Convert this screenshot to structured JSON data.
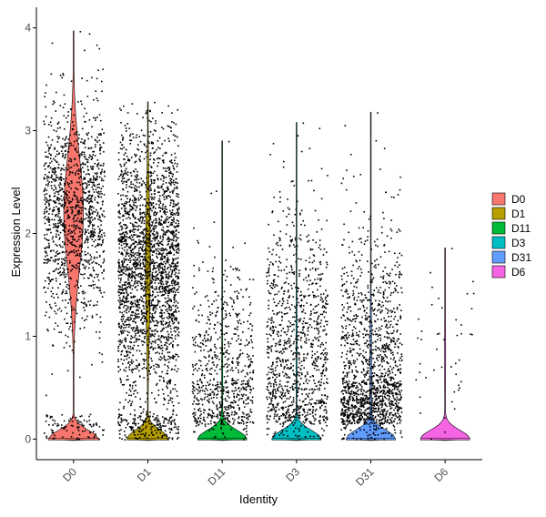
{
  "chart_data": {
    "type": "violin",
    "title": "",
    "xlabel": "Identity",
    "ylabel": "Expression Level",
    "ylim": [
      -0.2,
      4.2
    ],
    "yticks": [
      0,
      1,
      2,
      3,
      4
    ],
    "grid": false,
    "legend_position": "right",
    "categories": [
      "D0",
      "D1",
      "D11",
      "D3",
      "D31",
      "D6"
    ],
    "groups": [
      {
        "name": "D0",
        "color": "#F8766D",
        "max": 3.97,
        "n_points": 1400,
        "zero_fraction": 0.85,
        "nonzero_mode": 2.2,
        "nonzero_sd": 0.55,
        "violin_peak_width": 0.34
      },
      {
        "name": "D1",
        "color": "#B79F00",
        "max": 3.28,
        "n_points": 2600,
        "zero_fraction": 0.95,
        "nonzero_mode": 1.7,
        "nonzero_sd": 0.65,
        "violin_peak_width": 0.28
      },
      {
        "name": "D11",
        "color": "#00BA38",
        "max": 2.9,
        "n_points": 750,
        "zero_fraction": 0.99,
        "nonzero_mode": 0.6,
        "nonzero_sd": 0.55,
        "violin_peak_width": 0.33
      },
      {
        "name": "D3",
        "color": "#00BFC4",
        "max": 3.08,
        "n_points": 1100,
        "zero_fraction": 0.99,
        "nonzero_mode": 0.9,
        "nonzero_sd": 0.7,
        "violin_peak_width": 0.33
      },
      {
        "name": "D31",
        "color": "#619CFF",
        "max": 3.18,
        "n_points": 1500,
        "zero_fraction": 0.985,
        "nonzero_mode": 0.6,
        "nonzero_sd": 0.7,
        "violin_peak_width": 0.33
      },
      {
        "name": "D6",
        "color": "#F564E3",
        "max": 1.86,
        "n_points": 45,
        "zero_fraction": 0.99,
        "nonzero_mode": 0.8,
        "nonzero_sd": 0.5,
        "violin_peak_width": 0.33
      }
    ]
  }
}
